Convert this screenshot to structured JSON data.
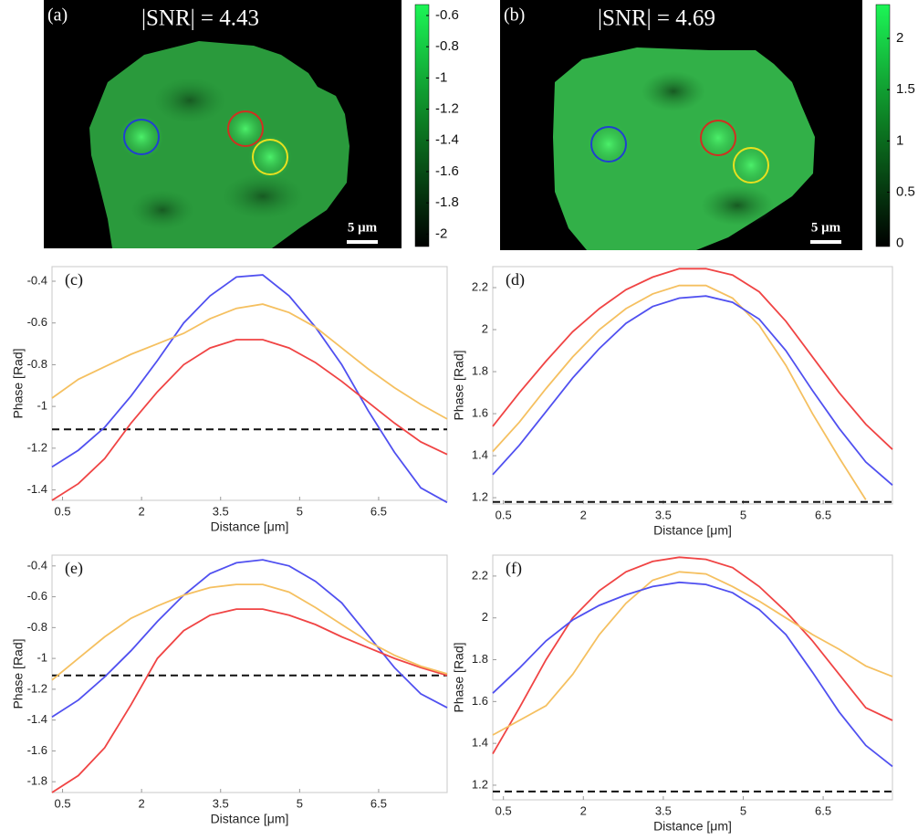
{
  "images": [
    {
      "label": "(a)",
      "snr": "|SNR| = 4.43",
      "scale": "5 μm",
      "colorbar": {
        "lim": [
          -2.08,
          -0.53
        ],
        "ticks": [
          -0.6,
          -0.8,
          -1,
          -1.2,
          -1.4,
          -1.6,
          -1.8,
          -2
        ]
      }
    },
    {
      "label": "(b)",
      "snr": "|SNR| = 4.69",
      "scale": "5 μm",
      "colorbar": {
        "lim": [
          -0.03,
          2.33
        ],
        "ticks": [
          2,
          1.5,
          1,
          0.5,
          0
        ]
      }
    }
  ],
  "chart_data": [
    {
      "type": "line",
      "label": "(c)",
      "x_label": "Distance [μm]",
      "y_label": "Phase [Rad]",
      "x": [
        0.3,
        0.8,
        1.3,
        1.8,
        2.3,
        2.8,
        3.3,
        3.8,
        4.3,
        4.8,
        5.3,
        5.8,
        6.3,
        6.8,
        7.3,
        7.8
      ],
      "xlim": [
        0.3,
        7.8
      ],
      "xticks": [
        0.5,
        2,
        3.5,
        5,
        6.5
      ],
      "ylim": [
        -1.45,
        -0.33
      ],
      "yticks": [
        -0.4,
        -0.6,
        -0.8,
        -1,
        -1.2,
        -1.4
      ],
      "threshold": -1.11,
      "series": [
        {
          "color": "#5050f0",
          "values": [
            -1.29,
            -1.21,
            -1.1,
            -0.95,
            -0.78,
            -0.6,
            -0.47,
            -0.38,
            -0.37,
            -0.47,
            -0.62,
            -0.8,
            -1.02,
            -1.22,
            -1.39,
            -1.46
          ]
        },
        {
          "color": "#f04444",
          "values": [
            -1.45,
            -1.37,
            -1.25,
            -1.08,
            -0.93,
            -0.8,
            -0.72,
            -0.68,
            -0.68,
            -0.72,
            -0.79,
            -0.88,
            -0.98,
            -1.08,
            -1.17,
            -1.23
          ]
        },
        {
          "color": "#f5c060",
          "values": [
            -0.96,
            -0.87,
            -0.81,
            -0.75,
            -0.7,
            -0.65,
            -0.58,
            -0.53,
            -0.51,
            -0.55,
            -0.62,
            -0.72,
            -0.82,
            -0.91,
            -0.99,
            -1.06
          ]
        }
      ]
    },
    {
      "type": "line",
      "label": "(d)",
      "x_label": "Distance [μm]",
      "y_label": "Phase [Rad]",
      "x": [
        0.3,
        0.8,
        1.3,
        1.8,
        2.3,
        2.8,
        3.3,
        3.8,
        4.3,
        4.8,
        5.3,
        5.8,
        6.3,
        6.8,
        7.3,
        7.8
      ],
      "xlim": [
        0.3,
        7.8
      ],
      "xticks": [
        0.5,
        2,
        3.5,
        5,
        6.5
      ],
      "ylim": [
        1.17,
        2.3
      ],
      "yticks": [
        2.2,
        2,
        1.8,
        1.6,
        1.4,
        1.2
      ],
      "threshold": 1.18,
      "series": [
        {
          "color": "#f04444",
          "values": [
            1.54,
            1.7,
            1.85,
            1.99,
            2.1,
            2.19,
            2.25,
            2.29,
            2.29,
            2.26,
            2.18,
            2.04,
            1.87,
            1.7,
            1.55,
            1.43
          ]
        },
        {
          "color": "#f5c060",
          "values": [
            1.42,
            1.56,
            1.72,
            1.87,
            2.0,
            2.1,
            2.17,
            2.21,
            2.21,
            2.15,
            2.02,
            1.83,
            1.6,
            1.39,
            1.19,
            null
          ]
        },
        {
          "color": "#5050f0",
          "values": [
            1.31,
            1.45,
            1.61,
            1.77,
            1.91,
            2.03,
            2.11,
            2.15,
            2.16,
            2.13,
            2.05,
            1.9,
            1.71,
            1.53,
            1.37,
            1.26
          ]
        }
      ]
    },
    {
      "type": "line",
      "label": "(e)",
      "x_label": "Distance [μm]",
      "y_label": "Phase [Rad]",
      "x": [
        0.3,
        0.8,
        1.3,
        1.8,
        2.3,
        2.8,
        3.3,
        3.8,
        4.3,
        4.8,
        5.3,
        5.8,
        6.3,
        6.8,
        7.3,
        7.8
      ],
      "xlim": [
        0.3,
        7.8
      ],
      "xticks": [
        0.5,
        2,
        3.5,
        5,
        6.5
      ],
      "ylim": [
        -1.87,
        -0.33
      ],
      "yticks": [
        -0.4,
        -0.6,
        -0.8,
        -1,
        -1.2,
        -1.4,
        -1.6,
        -1.8
      ],
      "threshold": -1.11,
      "series": [
        {
          "color": "#5050f0",
          "values": [
            -1.38,
            -1.27,
            -1.12,
            -0.95,
            -0.76,
            -0.59,
            -0.45,
            -0.38,
            -0.36,
            -0.4,
            -0.5,
            -0.64,
            -0.85,
            -1.06,
            -1.23,
            -1.32
          ]
        },
        {
          "color": "#f04444",
          "values": [
            -1.87,
            -1.76,
            -1.58,
            -1.3,
            -1.0,
            -0.82,
            -0.72,
            -0.68,
            -0.68,
            -0.72,
            -0.78,
            -0.86,
            -0.93,
            -1.0,
            -1.06,
            -1.11
          ]
        },
        {
          "color": "#f5c060",
          "values": [
            -1.14,
            -1.0,
            -0.86,
            -0.74,
            -0.66,
            -0.59,
            -0.54,
            -0.52,
            -0.52,
            -0.57,
            -0.67,
            -0.78,
            -0.89,
            -0.98,
            -1.05,
            -1.1
          ]
        }
      ]
    },
    {
      "type": "line",
      "label": "(f)",
      "x_label": "Distance [μm]",
      "y_label": "Phase [Rad]",
      "x": [
        0.3,
        0.8,
        1.3,
        1.8,
        2.3,
        2.8,
        3.3,
        3.8,
        4.3,
        4.8,
        5.3,
        5.8,
        6.3,
        6.8,
        7.3,
        7.8
      ],
      "xlim": [
        0.3,
        7.8
      ],
      "xticks": [
        0.5,
        2,
        3.5,
        5,
        6.5
      ],
      "ylim": [
        1.13,
        2.3
      ],
      "yticks": [
        2.2,
        2,
        1.8,
        1.6,
        1.4,
        1.2
      ],
      "threshold": 1.17,
      "series": [
        {
          "color": "#f04444",
          "values": [
            1.35,
            1.57,
            1.8,
            2.0,
            2.13,
            2.22,
            2.27,
            2.29,
            2.28,
            2.24,
            2.15,
            2.03,
            1.89,
            1.73,
            1.57,
            1.51
          ]
        },
        {
          "color": "#f5c060",
          "values": [
            1.44,
            1.51,
            1.58,
            1.73,
            1.92,
            2.07,
            2.18,
            2.22,
            2.21,
            2.15,
            2.08,
            2.0,
            1.92,
            1.85,
            1.77,
            1.72
          ]
        },
        {
          "color": "#5050f0",
          "values": [
            1.64,
            1.76,
            1.89,
            1.99,
            2.06,
            2.11,
            2.15,
            2.17,
            2.16,
            2.12,
            2.04,
            1.92,
            1.74,
            1.55,
            1.39,
            1.29
          ]
        }
      ]
    }
  ]
}
